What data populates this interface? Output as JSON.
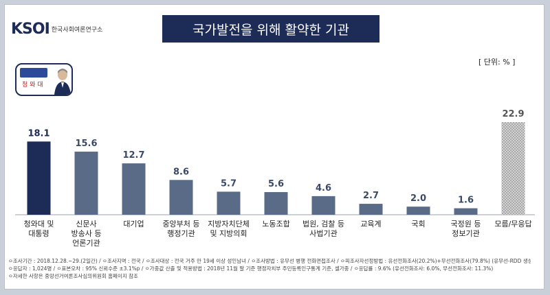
{
  "header": {
    "logo": "KSOI",
    "logo_sub": "한국사회여론연구소",
    "title": "국가발전을 위해 활약한 기관",
    "unit": "[ 단위: % ]"
  },
  "badge": {
    "label": "청 와 대"
  },
  "colors": {
    "highlight": "#1d2b57",
    "bar": "#5a6b87",
    "hatch": "#bfbfbf",
    "value_text": "#3a4a66"
  },
  "chart_data": {
    "type": "bar",
    "title": "국가발전을 위해 활약한 기관",
    "categories": [
      [
        "청와대 및",
        "대통령"
      ],
      [
        "신문사",
        "방송사 등",
        "언론기관"
      ],
      [
        "대기업"
      ],
      [
        "중앙부처 등",
        "행정기관"
      ],
      [
        "지방자치단체",
        "및 지방의회"
      ],
      [
        "노동조합"
      ],
      [
        "법원, 검찰 등",
        "사법기관"
      ],
      [
        "교육계"
      ],
      [
        "국회"
      ],
      [
        "국정원 등",
        "정보기관"
      ],
      [
        "모름/무응답"
      ]
    ],
    "values": [
      18.1,
      15.6,
      12.7,
      8.6,
      5.7,
      5.6,
      4.6,
      2.7,
      2.0,
      1.6,
      22.9
    ],
    "highlight_index": 0,
    "hatched_index": 10,
    "ylim": [
      0,
      22.9
    ],
    "ylabel": "",
    "xlabel": ""
  },
  "footer": {
    "lines": [
      "ㅇ조사기간 : 2018.12.28.~29.(2일간) / ㅇ조사지역 : 전국 / ㅇ조사대상 : 전국 거주 만 19세 이상 성인남녀 / ㅇ조사방법 : 유무선 병행 전화면접조사 / ㅇ피조사자선정방법 : 유선전화조사(20.2%)+무선전화조사(79.8%) (유무선-RDD 생성)",
      "ㅇ응답자 : 1,024명 / ㅇ표본오차 : 95% 신뢰수준 ±3.1%p / ㅇ가중값 산출 및 적용방법 : 2018년 11월 말 기준 행정자치부 주민등록인구통계 기준, 셀가중 / ㅇ응답률 : 9.6% (유선전화조사: 6.0%, 무선전화조사: 11.3%)",
      "ㅇ자세한 사항은 중앙선거여론조사심의위원회 홈페이지 참조"
    ]
  }
}
